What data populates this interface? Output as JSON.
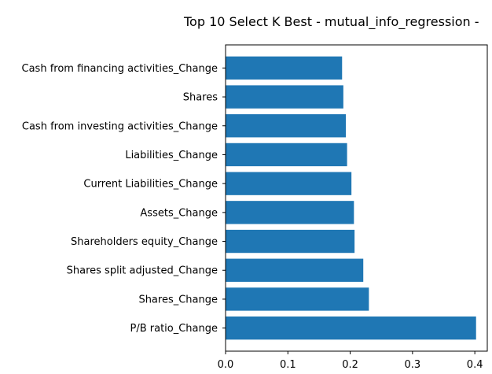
{
  "chart_data": {
    "type": "bar",
    "orientation": "horizontal",
    "title": "Top 10 Select K Best - mutual_info_regression -",
    "xlabel": "",
    "ylabel": "",
    "xlim": [
      0.0,
      0.42
    ],
    "xticks": [
      0.0,
      0.1,
      0.2,
      0.3,
      0.4
    ],
    "xtick_labels": [
      "0.0",
      "0.1",
      "0.2",
      "0.3",
      "0.4"
    ],
    "bar_color": "#1f77b4",
    "categories": [
      "Cash from financing activities_Change",
      "Shares",
      "Cash from investing activities_Change",
      "Liabilities_Change",
      "Current Liabilities_Change",
      "Assets_Change",
      "Shareholders equity_Change",
      "Shares split adjusted_Change",
      "Shares_Change",
      "P/B ratio_Change"
    ],
    "values": [
      0.187,
      0.189,
      0.193,
      0.195,
      0.202,
      0.206,
      0.207,
      0.221,
      0.23,
      0.402
    ],
    "grid": false,
    "legend": "none"
  }
}
